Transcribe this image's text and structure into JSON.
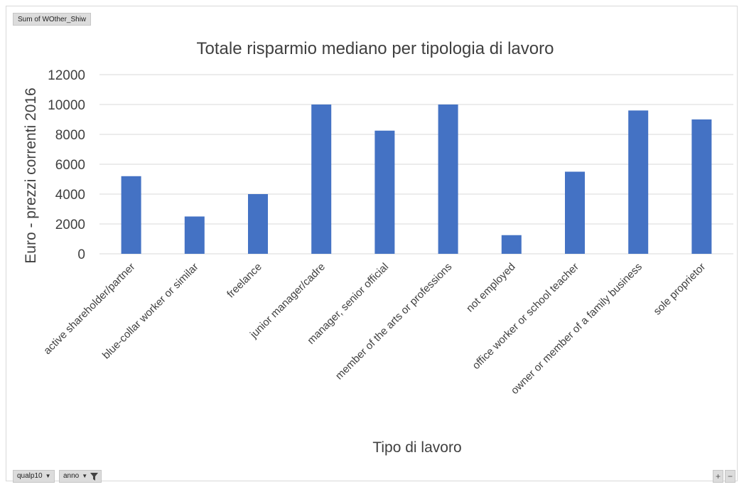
{
  "pivot_field_button": "Sum of WOther_Shiw",
  "filters": [
    {
      "label": "qualp10",
      "icon": "dropdown-arrow-icon"
    },
    {
      "label": "anno",
      "icon": "filter-funnel-icon"
    }
  ],
  "zoom_controls": {
    "plus": "+",
    "minus": "−"
  },
  "colors": {
    "bar": "#4472C4",
    "grid": "#d9d9d9",
    "text": "#404040"
  },
  "chart_data": {
    "type": "bar",
    "title": "Totale risparmio mediano per tipologia di lavoro",
    "xlabel": "Tipo di lavoro",
    "ylabel": "Euro - prezzi correnti 2016",
    "ylim": [
      0,
      12000
    ],
    "yticks": [
      0,
      2000,
      4000,
      6000,
      8000,
      10000,
      12000
    ],
    "grid": true,
    "legend": "none",
    "categories": [
      "active shareholder/partner",
      "blue-collar worker or similar",
      "freelance",
      "junior manager/cadre",
      "manager, senior official",
      "member of the arts or professions",
      "not employed",
      "office worker or school teacher",
      "owner or member of a family business",
      "sole proprietor"
    ],
    "values": [
      5200,
      2500,
      4000,
      10000,
      8250,
      10000,
      1250,
      5500,
      9600,
      9000
    ]
  }
}
